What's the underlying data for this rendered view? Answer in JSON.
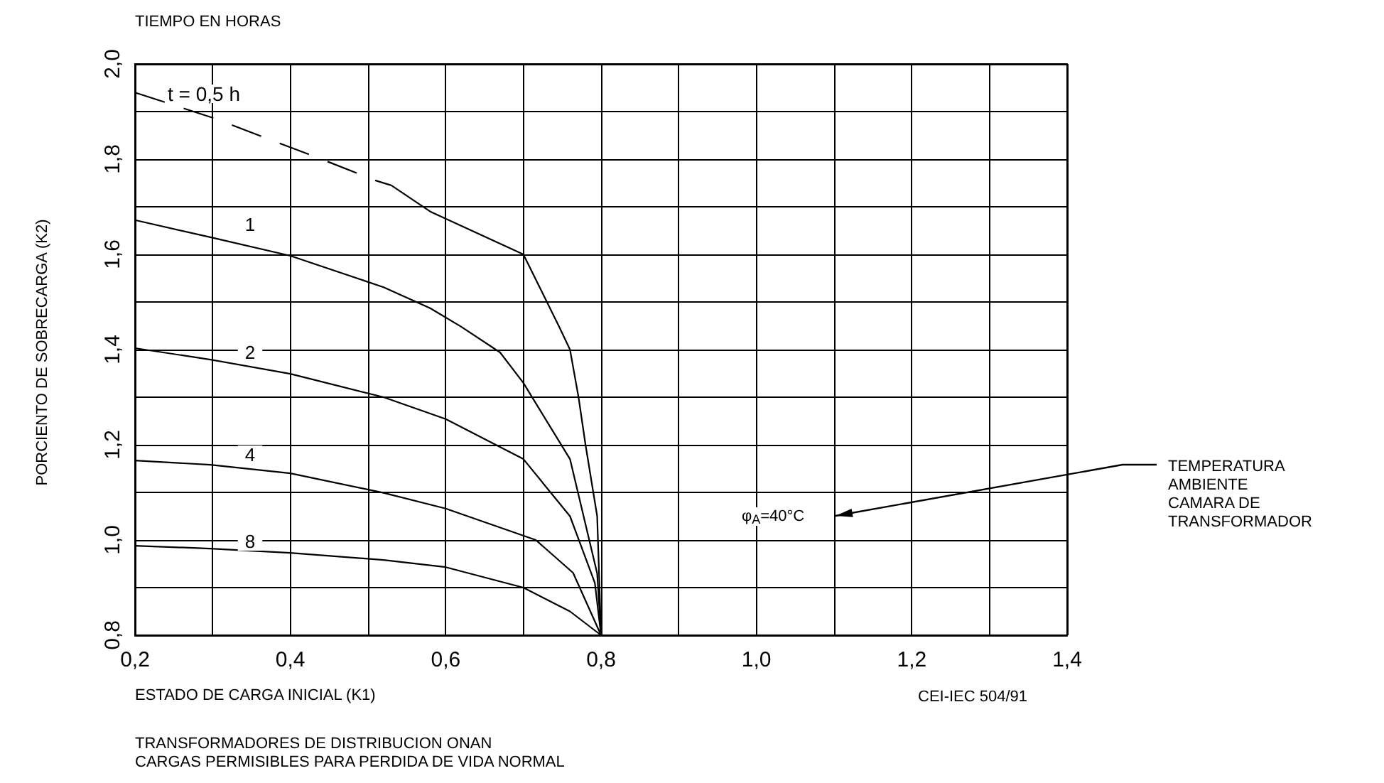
{
  "chart_data": {
    "type": "line",
    "title": "TIEMPO EN HORAS",
    "xlabel": "ESTADO DE CARGA INICIAL (K1)",
    "ylabel": "PORCIENTO DE SOBRECARGA (K2)",
    "series": [
      {
        "color": "#000000",
        "line_style": "dashed",
        "x": [
          0.2,
          0.3,
          0.44,
          0.51,
          0.53
        ],
        "values": [
          1.94,
          1.887,
          1.8,
          1.755,
          1.745
        ]
      },
      {
        "color": "#000000",
        "line_style": "solid",
        "x": [
          0.53,
          0.58,
          0.7,
          0.746,
          0.76,
          0.771,
          0.78,
          0.795,
          0.8
        ],
        "values": [
          1.745,
          1.69,
          1.6,
          1.448,
          1.4,
          1.3,
          1.2,
          1.05,
          0.8
        ]
      },
      {
        "color": "#000000",
        "line_style": "solid",
        "x": [
          0.2,
          0.297,
          0.4,
          0.52,
          0.58,
          0.62,
          0.67,
          0.7,
          0.76,
          0.795,
          0.8
        ],
        "values": [
          1.672,
          1.636,
          1.597,
          1.531,
          1.487,
          1.448,
          1.394,
          1.33,
          1.17,
          0.93,
          0.8
        ]
      },
      {
        "color": "#000000",
        "line_style": "solid",
        "x": [
          0.2,
          0.297,
          0.4,
          0.52,
          0.6,
          0.7,
          0.76,
          0.792,
          0.8
        ],
        "values": [
          1.403,
          1.379,
          1.349,
          1.3,
          1.254,
          1.17,
          1.05,
          0.91,
          0.8
        ]
      },
      {
        "color": "#000000",
        "line_style": "solid",
        "x": [
          0.2,
          0.297,
          0.4,
          0.52,
          0.6,
          0.716,
          0.764,
          0.8
        ],
        "values": [
          1.167,
          1.158,
          1.14,
          1.099,
          1.066,
          1.0,
          0.931,
          0.8
        ]
      },
      {
        "color": "#000000",
        "line_style": "solid",
        "x": [
          0.2,
          0.297,
          0.4,
          0.52,
          0.6,
          0.7,
          0.76,
          0.8
        ],
        "values": [
          0.988,
          0.982,
          0.973,
          0.958,
          0.943,
          0.9,
          0.85,
          0.8
        ]
      }
    ],
    "xlim": [
      0.2,
      1.4
    ],
    "xticks": [
      {
        "value": 0.2,
        "label": "0,2"
      },
      {
        "value": 0.3,
        "label": null
      },
      {
        "value": 0.4,
        "label": "0,4"
      },
      {
        "value": 0.5,
        "label": null
      },
      {
        "value": 0.6,
        "label": "0,6"
      },
      {
        "value": 0.7,
        "label": null
      },
      {
        "value": 0.8,
        "label": "0,8"
      },
      {
        "value": 0.9,
        "label": null
      },
      {
        "value": 1.0,
        "label": "1,0"
      },
      {
        "value": 1.1,
        "label": null
      },
      {
        "value": 1.2,
        "label": "1,2"
      },
      {
        "value": 1.3,
        "label": null
      },
      {
        "value": 1.4,
        "label": "1,4"
      }
    ],
    "ylim": [
      0.8,
      2.0
    ],
    "yticks": [
      {
        "value": 0.8,
        "label": "0,8"
      },
      {
        "value": 0.9,
        "label": null
      },
      {
        "value": 1.0,
        "label": "1,0"
      },
      {
        "value": 1.1,
        "label": null
      },
      {
        "value": 1.2,
        "label": "1,2"
      },
      {
        "value": 1.3,
        "label": null
      },
      {
        "value": 1.4,
        "label": "1,4"
      },
      {
        "value": 1.5,
        "label": null
      },
      {
        "value": 1.6,
        "label": "1,6"
      },
      {
        "value": 1.7,
        "label": null
      },
      {
        "value": 1.8,
        "label": "1,8"
      },
      {
        "value": 1.9,
        "label": null
      },
      {
        "value": 2.0,
        "label": "2,0"
      }
    ],
    "grid": true,
    "marker": "none",
    "annotations": [
      "t = 0,5 h",
      "1",
      "2",
      "4",
      "8",
      "CEI-IEC 504/91",
      "φ$_{A}$=40°C",
      "TEMPERATURA\nAMBIENTE\nCAMARA DE\nTRANSFORMADOR",
      "TRANSFORMADORES DE DISTRIBUCION ONAN\nCARGAS PERMISIBLES PARA PERDIDA DE VIDA NORMAL"
    ]
  }
}
